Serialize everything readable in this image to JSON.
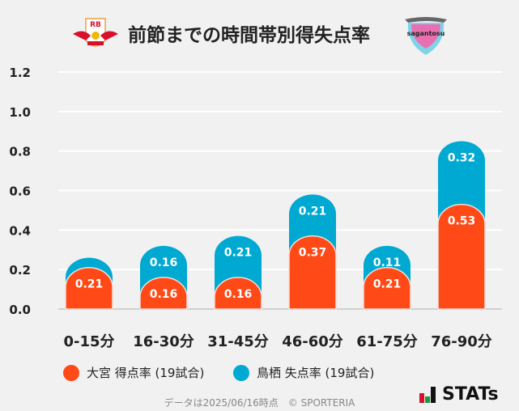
{
  "header": {
    "title": "前節までの時間帯別得失点率",
    "home_logo_text": "RB",
    "away_logo_text": "sagantosu"
  },
  "chart_data": {
    "type": "bar",
    "stacked": true,
    "categories": [
      "0-15分",
      "16-30分",
      "31-45分",
      "46-60分",
      "61-75分",
      "76-90分"
    ],
    "series": [
      {
        "name": "大宮 得点率 (19試合)",
        "color": "#ff4a17",
        "values": [
          0.21,
          0.16,
          0.16,
          0.37,
          0.21,
          0.53
        ],
        "labels": [
          "0.21",
          "0.16",
          "0.16",
          "0.37",
          "0.21",
          "0.53"
        ]
      },
      {
        "name": "鳥栖 失点率 (19試合)",
        "color": "#00a9d1",
        "values": [
          0.05,
          0.16,
          0.21,
          0.21,
          0.11,
          0.32
        ],
        "labels": [
          "",
          "0.16",
          "0.21",
          "0.21",
          "0.11",
          "0.32"
        ]
      }
    ],
    "ylim": [
      0,
      1.2
    ],
    "yticks": [
      "0.0",
      "0.2",
      "0.4",
      "0.6",
      "0.8",
      "1.0",
      "1.2"
    ],
    "grid": true,
    "legend": "bottom"
  },
  "footer": {
    "note": "データは2025/06/16時点　© SPORTERIA",
    "brand": "STATs"
  }
}
